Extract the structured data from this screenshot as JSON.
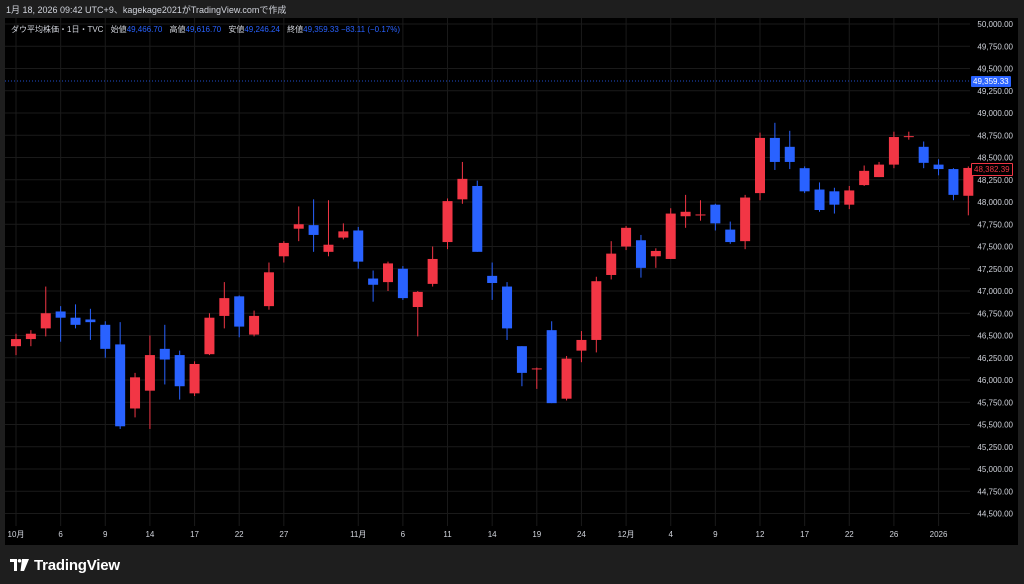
{
  "caption": "1月 18, 2026 09:42 UTC+9、kagekage2021がTradingView.comで作成",
  "legend": {
    "symbol": "ダウ平均株価・1日・TVC",
    "open_label": "始値",
    "open": "49,466.70",
    "high_label": "高値",
    "high": "49,616.70",
    "low_label": "安値",
    "low": "49,246.24",
    "close_label": "終値",
    "close": "49,359.33",
    "change": "−83.11 (−0.17%)"
  },
  "price_tags": {
    "last_close": "49,359.33",
    "current": "48,382.39"
  },
  "brand": "TradingView",
  "colors": {
    "up": "#f23645",
    "down": "#2962ff",
    "background": "#000000",
    "frame": "#1e1e1e",
    "grid": "#1a1a1a",
    "axis_text": "#d1d4dc"
  },
  "chart_data": {
    "type": "candlestick",
    "title": "ダウ平均株価・1日・TVC",
    "y_axis": {
      "min": 44500,
      "max": 50000,
      "step": 250,
      "ticks": [
        "44,500.00",
        "44,750.00",
        "45,000.00",
        "45,250.00",
        "45,500.00",
        "45,750.00",
        "46,000.00",
        "46,250.00",
        "46,500.00",
        "46,750.00",
        "47,000.00",
        "47,250.00",
        "47,500.00",
        "47,750.00",
        "48,000.00",
        "48,250.00",
        "48,500.00",
        "48,750.00",
        "49,000.00",
        "49,250.00",
        "49,500.00",
        "49,750.00",
        "50,000.00"
      ]
    },
    "x_labels": [
      {
        "i": 0,
        "text": "10月"
      },
      {
        "i": 3,
        "text": "6"
      },
      {
        "i": 6,
        "text": "9"
      },
      {
        "i": 9,
        "text": "14"
      },
      {
        "i": 12,
        "text": "17"
      },
      {
        "i": 15,
        "text": "22"
      },
      {
        "i": 18,
        "text": "27"
      },
      {
        "i": 23,
        "text": "11月"
      },
      {
        "i": 26,
        "text": "6"
      },
      {
        "i": 29,
        "text": "11"
      },
      {
        "i": 32,
        "text": "14"
      },
      {
        "i": 35,
        "text": "19"
      },
      {
        "i": 38,
        "text": "24"
      },
      {
        "i": 41,
        "text": "12月"
      },
      {
        "i": 44,
        "text": "4"
      },
      {
        "i": 47,
        "text": "9"
      },
      {
        "i": 50,
        "text": "12"
      },
      {
        "i": 53,
        "text": "17"
      },
      {
        "i": 56,
        "text": "22"
      },
      {
        "i": 59,
        "text": "26"
      },
      {
        "i": 62,
        "text": "2026"
      }
    ],
    "candles": [
      {
        "o": 46380,
        "h": 46520,
        "l": 46280,
        "c": 46460
      },
      {
        "o": 46460,
        "h": 46560,
        "l": 46380,
        "c": 46520
      },
      {
        "o": 46580,
        "h": 47050,
        "l": 46490,
        "c": 46750
      },
      {
        "o": 46770,
        "h": 46830,
        "l": 46430,
        "c": 46700
      },
      {
        "o": 46700,
        "h": 46850,
        "l": 46580,
        "c": 46620
      },
      {
        "o": 46680,
        "h": 46800,
        "l": 46450,
        "c": 46650
      },
      {
        "o": 46620,
        "h": 46660,
        "l": 46250,
        "c": 46350
      },
      {
        "o": 46400,
        "h": 46650,
        "l": 45450,
        "c": 45480
      },
      {
        "o": 45680,
        "h": 46080,
        "l": 45580,
        "c": 46030
      },
      {
        "o": 45880,
        "h": 46500,
        "l": 45450,
        "c": 46280
      },
      {
        "o": 46350,
        "h": 46620,
        "l": 45950,
        "c": 46230
      },
      {
        "o": 46280,
        "h": 46330,
        "l": 45780,
        "c": 45930
      },
      {
        "o": 45850,
        "h": 46210,
        "l": 45820,
        "c": 46180
      },
      {
        "o": 46290,
        "h": 46750,
        "l": 46280,
        "c": 46700
      },
      {
        "o": 46720,
        "h": 47100,
        "l": 46580,
        "c": 46920
      },
      {
        "o": 46940,
        "h": 46950,
        "l": 46480,
        "c": 46600
      },
      {
        "o": 46510,
        "h": 46780,
        "l": 46490,
        "c": 46720
      },
      {
        "o": 46830,
        "h": 47320,
        "l": 46790,
        "c": 47210
      },
      {
        "o": 47390,
        "h": 47560,
        "l": 47320,
        "c": 47540
      },
      {
        "o": 47700,
        "h": 47950,
        "l": 47560,
        "c": 47750
      },
      {
        "o": 47740,
        "h": 48030,
        "l": 47440,
        "c": 47630
      },
      {
        "o": 47440,
        "h": 48020,
        "l": 47390,
        "c": 47520
      },
      {
        "o": 47600,
        "h": 47760,
        "l": 47580,
        "c": 47670
      },
      {
        "o": 47680,
        "h": 47720,
        "l": 47250,
        "c": 47330
      },
      {
        "o": 47140,
        "h": 47230,
        "l": 46880,
        "c": 47070
      },
      {
        "o": 47100,
        "h": 47330,
        "l": 47000,
        "c": 47310
      },
      {
        "o": 47250,
        "h": 47280,
        "l": 46900,
        "c": 46920
      },
      {
        "o": 46820,
        "h": 47000,
        "l": 46490,
        "c": 46990
      },
      {
        "o": 47080,
        "h": 47500,
        "l": 47050,
        "c": 47360
      },
      {
        "o": 47550,
        "h": 48040,
        "l": 47470,
        "c": 48010
      },
      {
        "o": 48030,
        "h": 48450,
        "l": 47980,
        "c": 48260
      },
      {
        "o": 48180,
        "h": 48240,
        "l": 47440,
        "c": 47440
      },
      {
        "o": 47170,
        "h": 47320,
        "l": 46900,
        "c": 47090
      },
      {
        "o": 47050,
        "h": 47100,
        "l": 46450,
        "c": 46580
      },
      {
        "o": 46380,
        "h": 46380,
        "l": 45930,
        "c": 46080
      },
      {
        "o": 46120,
        "h": 46140,
        "l": 45900,
        "c": 46130
      },
      {
        "o": 46560,
        "h": 46660,
        "l": 45740,
        "c": 45740
      },
      {
        "o": 45790,
        "h": 46270,
        "l": 45770,
        "c": 46240
      },
      {
        "o": 46330,
        "h": 46550,
        "l": 46200,
        "c": 46450
      },
      {
        "o": 46450,
        "h": 47160,
        "l": 46310,
        "c": 47110
      },
      {
        "o": 47180,
        "h": 47560,
        "l": 47130,
        "c": 47420
      },
      {
        "o": 47500,
        "h": 47730,
        "l": 47460,
        "c": 47710
      },
      {
        "o": 47570,
        "h": 47630,
        "l": 47150,
        "c": 47260
      },
      {
        "o": 47390,
        "h": 47480,
        "l": 47260,
        "c": 47450
      },
      {
        "o": 47360,
        "h": 47930,
        "l": 47360,
        "c": 47870
      },
      {
        "o": 47840,
        "h": 48080,
        "l": 47710,
        "c": 47890
      },
      {
        "o": 47860,
        "h": 48020,
        "l": 47790,
        "c": 47860
      },
      {
        "o": 47970,
        "h": 47980,
        "l": 47680,
        "c": 47760
      },
      {
        "o": 47690,
        "h": 47780,
        "l": 47530,
        "c": 47550
      },
      {
        "o": 47560,
        "h": 48080,
        "l": 47470,
        "c": 48050
      },
      {
        "o": 48100,
        "h": 48780,
        "l": 48020,
        "c": 48720
      },
      {
        "o": 48720,
        "h": 48890,
        "l": 48360,
        "c": 48450
      },
      {
        "o": 48620,
        "h": 48800,
        "l": 48370,
        "c": 48450
      },
      {
        "o": 48380,
        "h": 48400,
        "l": 48100,
        "c": 48120
      },
      {
        "o": 48140,
        "h": 48220,
        "l": 47890,
        "c": 47910
      },
      {
        "o": 48120,
        "h": 48160,
        "l": 47870,
        "c": 47970
      },
      {
        "o": 47970,
        "h": 48180,
        "l": 47920,
        "c": 48130
      },
      {
        "o": 48190,
        "h": 48410,
        "l": 48180,
        "c": 48350
      },
      {
        "o": 48280,
        "h": 48450,
        "l": 48280,
        "c": 48420
      },
      {
        "o": 48420,
        "h": 48790,
        "l": 48380,
        "c": 48730
      },
      {
        "o": 48730,
        "h": 48790,
        "l": 48700,
        "c": 48740
      },
      {
        "o": 48620,
        "h": 48680,
        "l": 48380,
        "c": 48440
      },
      {
        "o": 48420,
        "h": 48480,
        "l": 48300,
        "c": 48370
      },
      {
        "o": 48370,
        "h": 48380,
        "l": 48020,
        "c": 48080
      },
      {
        "o": 48070,
        "h": 48400,
        "l": 47850,
        "c": 48382.39
      }
    ]
  }
}
